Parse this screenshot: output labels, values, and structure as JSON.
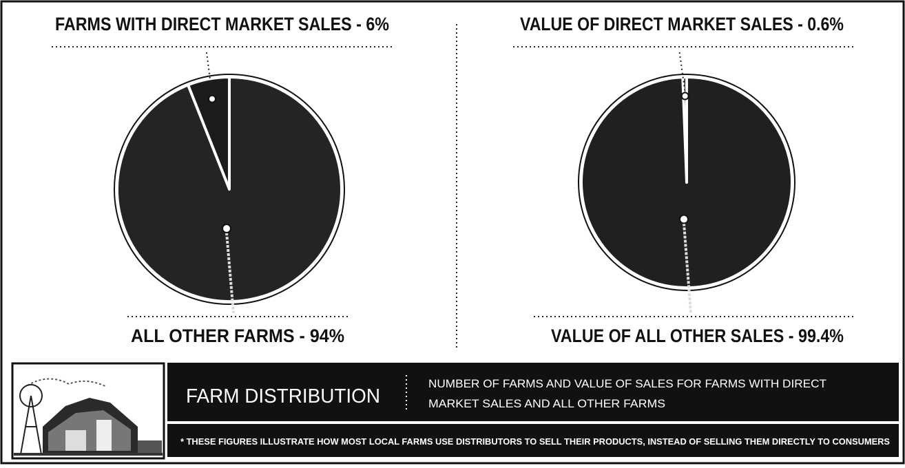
{
  "chart_data": [
    {
      "type": "pie",
      "categories": [
        "FARMS WITH DIRECT MARKET SALES - 6%",
        "ALL OTHER FARMS - 94%"
      ],
      "values": [
        6,
        94
      ],
      "colors": [
        "#1c1c1c",
        "#242424"
      ]
    },
    {
      "type": "pie",
      "categories": [
        "VALUE OF DIRECT MARKET SALES - 0.6%",
        "VALUE OF ALL OTHER SALES - 99.4%"
      ],
      "values": [
        0.6,
        99.4
      ],
      "colors": [
        "#1c1c1c",
        "#202020"
      ]
    }
  ],
  "banner": {
    "title": "FARM DISTRIBUTION",
    "description": [
      "NUMBER OF FARMS AND VALUE OF SALES FOR FARMS WITH DIRECT",
      "MARKET SALES AND ALL OTHER FARMS"
    ],
    "footnote": "* THESE FIGURES ILLUSTRATE HOW MOST LOCAL FARMS USE DISTRIBUTORS TO SELL THEIR PRODUCTS, INSTEAD OF SELLING THEM DIRECTLY TO CONSUMERS"
  }
}
